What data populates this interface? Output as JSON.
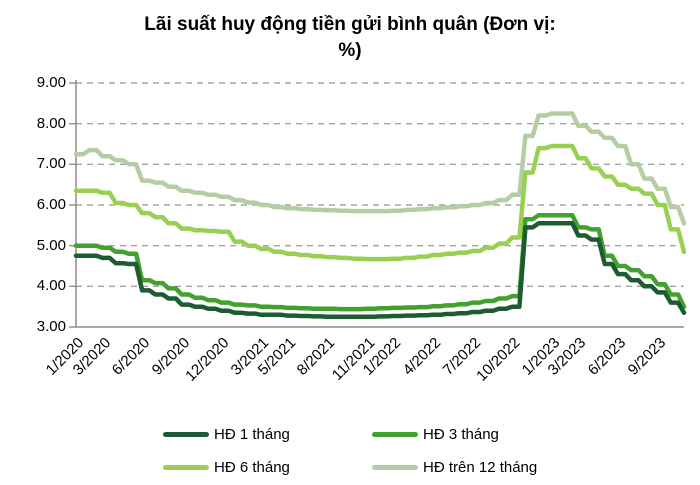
{
  "title": {
    "line1": "Lãi suất huy động tiền gửi bình quân (Đơn vị:",
    "line2": "%)"
  },
  "chart_data": {
    "type": "line",
    "title": "Lãi suất huy động tiền gửi bình quân (Đơn vị: %)",
    "xlabel": "",
    "ylabel": "",
    "ylim": [
      3,
      9
    ],
    "y_tick_labels": [
      "9.00",
      "8.00",
      "7.00",
      "6.00",
      "5.00",
      "4.00",
      "3.00"
    ],
    "grid": "horizontal-dashed",
    "legend_position": "bottom",
    "axis_color": "#8c8c8c",
    "gridline_color": "#a3a3a3",
    "x": [
      "1/2020",
      "2/2020",
      "3/2020",
      "4/2020",
      "5/2020",
      "6/2020",
      "7/2020",
      "8/2020",
      "9/2020",
      "10/2020",
      "11/2020",
      "12/2020",
      "1/2021",
      "2/2021",
      "3/2021",
      "4/2021",
      "5/2021",
      "6/2021",
      "7/2021",
      "8/2021",
      "9/2021",
      "10/2021",
      "11/2021",
      "12/2021",
      "1/2022",
      "2/2022",
      "3/2022",
      "4/2022",
      "5/2022",
      "6/2022",
      "7/2022",
      "8/2022",
      "9/2022",
      "10/2022",
      "11/2022",
      "12/2022",
      "1/2023",
      "2/2023",
      "3/2023",
      "4/2023",
      "5/2023",
      "6/2023",
      "7/2023",
      "8/2023",
      "9/2023",
      "10/2023",
      "11/2023"
    ],
    "x_tick_indices": [
      0,
      2,
      5,
      8,
      11,
      14,
      16,
      19,
      22,
      24,
      27,
      30,
      33,
      36,
      38,
      41,
      44
    ],
    "series": [
      {
        "name": "HĐ 1 tháng",
        "color": "#1e5b32",
        "values": [
          4.75,
          4.75,
          4.7,
          4.57,
          4.55,
          3.9,
          3.8,
          3.7,
          3.55,
          3.5,
          3.45,
          3.4,
          3.35,
          3.33,
          3.3,
          3.3,
          3.28,
          3.27,
          3.26,
          3.25,
          3.25,
          3.25,
          3.25,
          3.26,
          3.27,
          3.28,
          3.29,
          3.3,
          3.32,
          3.34,
          3.37,
          3.4,
          3.45,
          3.5,
          5.45,
          5.55,
          5.55,
          5.55,
          5.25,
          5.15,
          4.55,
          4.3,
          4.15,
          4.0,
          3.85,
          3.6,
          3.35
        ]
      },
      {
        "name": "HĐ 3 tháng",
        "color": "#43a22f",
        "values": [
          5.0,
          5.0,
          4.95,
          4.85,
          4.8,
          4.15,
          4.08,
          3.95,
          3.8,
          3.72,
          3.66,
          3.6,
          3.55,
          3.53,
          3.5,
          3.49,
          3.47,
          3.46,
          3.45,
          3.45,
          3.44,
          3.44,
          3.45,
          3.46,
          3.47,
          3.48,
          3.49,
          3.51,
          3.53,
          3.56,
          3.6,
          3.64,
          3.7,
          3.76,
          5.65,
          5.75,
          5.75,
          5.75,
          5.45,
          5.4,
          4.75,
          4.5,
          4.4,
          4.25,
          4.05,
          3.8,
          3.5
        ]
      },
      {
        "name": "HĐ 6 tháng",
        "color": "#99d054",
        "values": [
          6.35,
          6.35,
          6.3,
          6.05,
          6.0,
          5.8,
          5.7,
          5.55,
          5.42,
          5.38,
          5.36,
          5.34,
          5.1,
          5.0,
          4.92,
          4.85,
          4.8,
          4.77,
          4.74,
          4.72,
          4.7,
          4.68,
          4.67,
          4.67,
          4.68,
          4.7,
          4.73,
          4.77,
          4.8,
          4.83,
          4.87,
          4.95,
          5.05,
          5.2,
          6.8,
          7.4,
          7.45,
          7.45,
          7.15,
          6.9,
          6.7,
          6.5,
          6.4,
          6.28,
          6.0,
          5.4,
          4.85
        ]
      },
      {
        "name": "HĐ trên 12 tháng",
        "color": "#b5cda4",
        "values": [
          7.25,
          7.35,
          7.2,
          7.1,
          7.0,
          6.6,
          6.55,
          6.45,
          6.35,
          6.3,
          6.25,
          6.2,
          6.12,
          6.06,
          6.0,
          5.95,
          5.92,
          5.9,
          5.88,
          5.87,
          5.86,
          5.85,
          5.85,
          5.85,
          5.86,
          5.88,
          5.9,
          5.92,
          5.94,
          5.97,
          6.0,
          6.05,
          6.12,
          6.25,
          7.7,
          8.2,
          8.25,
          8.25,
          7.95,
          7.8,
          7.65,
          7.45,
          7.0,
          6.65,
          6.4,
          5.95,
          5.55
        ]
      }
    ]
  }
}
